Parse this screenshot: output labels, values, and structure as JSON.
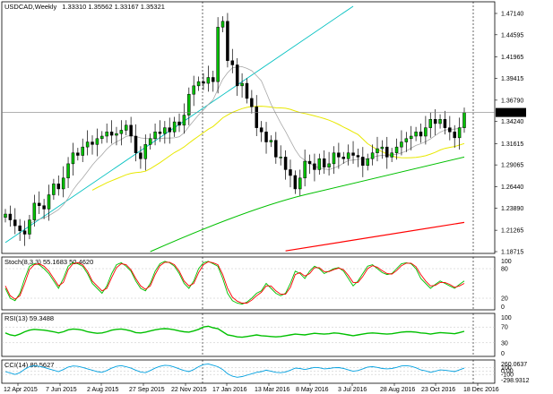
{
  "chart_data": [
    {
      "panel": "main",
      "type": "candlestick",
      "title": "USDCAD,Weekly",
      "ohlc_header": "1.33310 1.35562 1.33167 1.35321",
      "price_axis": {
        "labels": [
          "1.47140",
          "1.44595",
          "1.41965",
          "1.39415",
          "1.36790",
          "1.34240",
          "1.31615",
          "1.29065",
          "1.26440",
          "1.23890",
          "1.21265",
          "1.18715"
        ],
        "ylim": [
          1.18715,
          1.4714
        ]
      },
      "current_price_label": "1.35321",
      "x_axis": {
        "labels": [
          "12 Apr 2015",
          "7 Jun 2015",
          "2 Aug 2015",
          "27 Sep 2015",
          "22 Nov 2015",
          "17 Jan 2016",
          "13 Mar 2016",
          "8 May 2016",
          "3 Jul 2016",
          "28 Aug 2016",
          "23 Oct 2016",
          "18 Dec 2016"
        ]
      },
      "close_series": [
        1.232,
        1.225,
        1.218,
        1.212,
        1.208,
        1.225,
        1.245,
        1.242,
        1.238,
        1.255,
        1.268,
        1.262,
        1.275,
        1.292,
        1.305,
        1.302,
        1.312,
        1.318,
        1.315,
        1.322,
        1.325,
        1.33,
        1.326,
        1.328,
        1.332,
        1.338,
        1.325,
        1.305,
        1.298,
        1.315,
        1.322,
        1.33,
        1.328,
        1.335,
        1.33,
        1.342,
        1.338,
        1.35,
        1.375,
        1.385,
        1.39,
        1.388,
        1.395,
        1.39,
        1.455,
        1.462,
        1.415,
        1.41,
        1.385,
        1.388,
        1.37,
        1.36,
        1.335,
        1.33,
        1.318,
        1.32,
        1.3,
        1.3,
        1.285,
        1.278,
        1.262,
        1.275,
        1.295,
        1.292,
        1.285,
        1.298,
        1.288,
        1.292,
        1.305,
        1.3,
        1.298,
        1.305,
        1.302,
        1.3,
        1.29,
        1.298,
        1.305,
        1.31,
        1.312,
        1.3,
        1.305,
        1.312,
        1.318,
        1.322,
        1.325,
        1.33,
        1.325,
        1.335,
        1.345,
        1.34,
        1.345,
        1.335,
        1.33,
        1.323,
        1.335,
        1.353
      ],
      "indicator_lines": [
        {
          "color": "#00c0c0",
          "label": "trendline-cyan"
        },
        {
          "color": "#ffff00",
          "label": "moving-average-yellow"
        },
        {
          "color": "#a0a0a0",
          "label": "moving-average-gray"
        },
        {
          "color": "#00c000",
          "label": "moving-average-green"
        },
        {
          "color": "#ff0000",
          "label": "moving-average-red"
        }
      ]
    },
    {
      "panel": "stochastic",
      "type": "line",
      "title": "Stoch(8,3,3) 55.1683 50.4620",
      "axis_labels": [
        "100",
        "80",
        "20",
        "0"
      ],
      "series": [
        {
          "color": "#00c000",
          "values": [
            40,
            20,
            15,
            30,
            60,
            85,
            90,
            88,
            80,
            70,
            55,
            40,
            60,
            85,
            92,
            90,
            85,
            70,
            50,
            40,
            30,
            45,
            70,
            88,
            92,
            85,
            75,
            55,
            40,
            35,
            50,
            75,
            90,
            95,
            92,
            85,
            70,
            50,
            40,
            55,
            80,
            92,
            95,
            90,
            85,
            60,
            30,
            15,
            10,
            8,
            12,
            20,
            30,
            35,
            50,
            40,
            30,
            25,
            30,
            50,
            75,
            70,
            60,
            75,
            85,
            80,
            70,
            75,
            80,
            82,
            75,
            60,
            45,
            55,
            70,
            85,
            88,
            80,
            72,
            68,
            70,
            80,
            90,
            92,
            90,
            80,
            60,
            50,
            40,
            48,
            55,
            50,
            45,
            40,
            48,
            55
          ]
        },
        {
          "color": "#ff0000",
          "values": [
            45,
            25,
            18,
            25,
            50,
            78,
            88,
            90,
            85,
            75,
            60,
            45,
            52,
            78,
            90,
            92,
            88,
            75,
            55,
            45,
            35,
            40,
            62,
            82,
            90,
            88,
            78,
            60,
            45,
            38,
            45,
            68,
            86,
            93,
            93,
            88,
            75,
            55,
            45,
            50,
            72,
            88,
            94,
            92,
            88,
            68,
            40,
            22,
            14,
            10,
            10,
            16,
            25,
            32,
            45,
            45,
            35,
            28,
            28,
            42,
            68,
            72,
            65,
            70,
            82,
            82,
            74,
            74,
            78,
            81,
            78,
            66,
            52,
            52,
            64,
            80,
            86,
            83,
            76,
            70,
            69,
            76,
            86,
            91,
            91,
            84,
            68,
            55,
            45,
            46,
            52,
            52,
            48,
            42,
            45,
            50
          ]
        }
      ]
    },
    {
      "panel": "rsi",
      "type": "line",
      "title": "RSI(13) 59.3488",
      "axis_labels": [
        "100",
        "70",
        "30",
        "0"
      ],
      "series": [
        {
          "color": "#00c000",
          "values": [
            55,
            50,
            48,
            52,
            58,
            62,
            64,
            63,
            62,
            60,
            58,
            55,
            58,
            63,
            65,
            64,
            62,
            58,
            56,
            54,
            55,
            58,
            62,
            64,
            65,
            63,
            60,
            56,
            55,
            57,
            60,
            63,
            65,
            66,
            65,
            63,
            60,
            58,
            57,
            60,
            64,
            70,
            72,
            68,
            66,
            58,
            50,
            48,
            45,
            44,
            46,
            48,
            50,
            48,
            47,
            46,
            45,
            46,
            48,
            50,
            52,
            51,
            50,
            52,
            54,
            53,
            52,
            53,
            55,
            54,
            52,
            50,
            48,
            50,
            52,
            54,
            55,
            54,
            53,
            52,
            53,
            55,
            57,
            58,
            58,
            57,
            55,
            54,
            52,
            54,
            56,
            55,
            54,
            53,
            56,
            59
          ]
        }
      ]
    },
    {
      "panel": "cci",
      "type": "line",
      "title": "CCI(14) 80.5627",
      "axis_labels": [
        "260.0637",
        "100",
        "0.00",
        "-100",
        "-298.9312"
      ],
      "series": [
        {
          "color": "#00a0e0",
          "values": [
            -20,
            -60,
            -100,
            -50,
            50,
            120,
            150,
            130,
            100,
            60,
            20,
            -20,
            40,
            110,
            140,
            130,
            100,
            60,
            20,
            -20,
            -40,
            10,
            80,
            130,
            150,
            120,
            80,
            20,
            -30,
            -50,
            10,
            80,
            130,
            160,
            150,
            110,
            60,
            10,
            -20,
            40,
            120,
            180,
            200,
            160,
            120,
            40,
            -80,
            -150,
            -180,
            -160,
            -120,
            -80,
            -40,
            -20,
            20,
            -10,
            -40,
            -50,
            -30,
            20,
            80,
            70,
            40,
            70,
            100,
            90,
            60,
            70,
            90,
            95,
            70,
            30,
            -10,
            10,
            60,
            110,
            120,
            100,
            70,
            60,
            70,
            100,
            140,
            150,
            130,
            90,
            30,
            0,
            -40,
            -10,
            30,
            20,
            0,
            -20,
            30,
            80
          ]
        }
      ]
    }
  ]
}
